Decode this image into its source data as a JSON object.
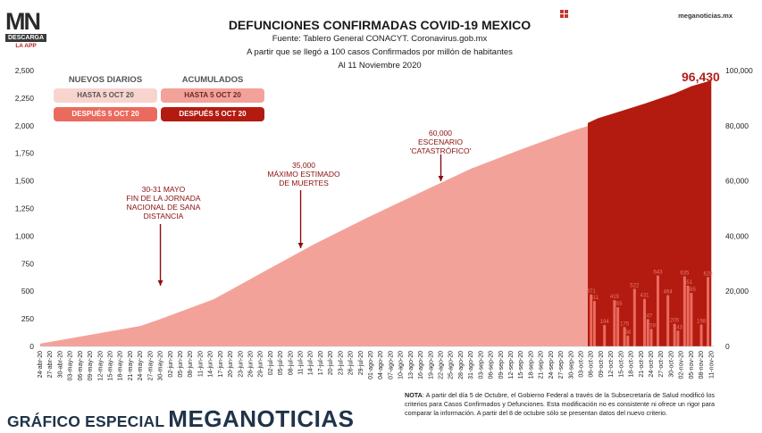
{
  "logo": {
    "mark": "MN",
    "line1": "DESCARGA",
    "line2": "LA APP"
  },
  "header": {
    "title": "DEFUNCIONES CONFIRMADAS COVID-19 MEXICO",
    "source": "Fuente: Tablero General CONACYT. Coronavirus.gob.mx",
    "subtitle": "A partir que se llegó a 100 casos Confirmados por millón de habitantes",
    "date": "Al 11 Noviembre 2020",
    "site": "meganoticias.mx"
  },
  "legend": {
    "daily_header": "NUEVOS DIARIOS",
    "cum_header": "ACUMULADOS",
    "daily_before": "HASTA 5 OCT 20",
    "daily_after": "DESPUÉS 5 OCT 20",
    "cum_before": "HASTA 5 OCT 20",
    "cum_after": "DESPUÉS 5 OCT 20"
  },
  "annotations": [
    {
      "lines": [
        "30-31 MAYO",
        "FIN DE LA JORNADA",
        "NACIONAL DE SANA",
        "DISTANCIA"
      ]
    },
    {
      "lines": [
        "35,000",
        "MÁXIMO ESTIMADO",
        "DE MUERTES"
      ]
    },
    {
      "lines": [
        "60,000",
        "ESCENARIO",
        "'CATASTRÓFICO'"
      ]
    }
  ],
  "note": {
    "label": "NOTA",
    "text": ": A partir del día 5 de Octubre, el Gobierno Federal a través de la Subsecretaría de Salud modificó los criterios para Casos Confirmados y Defunciones. Esta modificación no es consistente ni ofrece un rigor para comparar la información. A partir del 8 de octubre sólo se presentan datos del nuevo criterio."
  },
  "footer": {
    "lead": "GRÁFICO ESPECIAL",
    "brand": "MEGANOTICIAS"
  },
  "colors": {
    "daily_before": "#f8d4cf",
    "daily_after": "#ea6a5e",
    "cum_before": "#f3a29a",
    "cum_after": "#b31b10",
    "annotation": "#8b0e0e",
    "brand": "#1f3349"
  },
  "chart_data": {
    "type": "bar",
    "title": "DEFUNCIONES CONFIRMADAS COVID-19 MEXICO",
    "y_left": {
      "ylim": [
        0,
        2500
      ],
      "ticks": [
        "0",
        "250",
        "500",
        "750",
        "1,000",
        "1,250",
        "1,500",
        "1,750",
        "2,000",
        "2,250",
        "2,500"
      ]
    },
    "y_right": {
      "ylim": [
        0,
        100000
      ],
      "ticks": [
        "0",
        "20,000",
        "40,000",
        "60,000",
        "80,000",
        "100,000"
      ]
    },
    "x_ticks": [
      "24-abr-20",
      "27-abr-20",
      "30-abr-20",
      "03-may-20",
      "06-may-20",
      "09-may-20",
      "12-may-20",
      "15-may-20",
      "18-may-20",
      "21-may-20",
      "24-may-20",
      "27-may-20",
      "30-may-20",
      "02-jun-20",
      "05-jun-20",
      "08-jun-20",
      "11-jun-20",
      "14-jun-20",
      "17-jun-20",
      "20-jun-20",
      "23-jun-20",
      "26-jun-20",
      "29-jun-20",
      "02-jul-20",
      "05-jul-20",
      "08-jul-20",
      "11-jul-20",
      "14-jul-20",
      "17-jul-20",
      "20-jul-20",
      "23-jul-20",
      "26-jul-20",
      "29-jul-20",
      "01-ago-20",
      "04-ago-20",
      "07-ago-20",
      "10-ago-20",
      "13-ago-20",
      "16-ago-20",
      "19-ago-20",
      "22-ago-20",
      "25-ago-20",
      "28-ago-20",
      "31-ago-20",
      "03-sep-20",
      "06-sep-20",
      "09-sep-20",
      "12-sep-20",
      "15-sep-20",
      "18-sep-20",
      "21-sep-20",
      "24-sep-20",
      "27-sep-20",
      "30-sep-20",
      "03-oct-20",
      "06-oct-20",
      "09-oct-20",
      "12-oct-20",
      "15-oct-20",
      "18-oct-20",
      "21-oct-20",
      "24-oct-20",
      "27-oct-20",
      "30-oct-20",
      "02-nov-20",
      "05-nov-20",
      "08-nov-20",
      "11-nov-20"
    ],
    "start_date": "24-abr-20",
    "cumulative_last": "96,430",
    "cumulative_before_oct": [
      {
        "date": "24-abr-20",
        "value": 1000
      },
      {
        "date": "24-may-20",
        "value": 7400
      },
      {
        "date": "30-may-20",
        "value": 9900
      },
      {
        "date": "15-jun-20",
        "value": 17100
      },
      {
        "date": "30-jun-20",
        "value": 27100
      },
      {
        "date": "15-jul-20",
        "value": 37000
      },
      {
        "date": "31-jul-20",
        "value": 46700
      },
      {
        "date": "15-ago-20",
        "value": 55300
      },
      {
        "date": "31-ago-20",
        "value": 64400
      },
      {
        "date": "15-sep-20",
        "value": 71400
      },
      {
        "date": "30-sep-20",
        "value": 78000
      },
      {
        "date": "05-oct-20",
        "value": 79900
      }
    ],
    "cumulative_after_oct": [
      {
        "date": "05-oct-20",
        "value": 81000
      },
      {
        "date": "08-oct-20",
        "value": 82700
      },
      {
        "date": "15-oct-20",
        "value": 85300
      },
      {
        "date": "22-oct-20",
        "value": 88000
      },
      {
        "date": "31-oct-20",
        "value": 91700
      },
      {
        "date": "05-nov-20",
        "value": 94300
      },
      {
        "date": "11-nov-20",
        "value": 96430
      }
    ],
    "daily_labels_after": [
      {
        "date": "06-oct-20",
        "value": 471
      },
      {
        "date": "07-oct-20",
        "value": 411
      },
      {
        "date": "10-oct-20",
        "value": 194
      },
      {
        "date": "13-oct-20",
        "value": 419
      },
      {
        "date": "14-oct-20",
        "value": 355
      },
      {
        "date": "16-oct-20",
        "value": 175
      },
      {
        "date": "17-oct-20",
        "value": 98
      },
      {
        "date": "19-oct-20",
        "value": 522
      },
      {
        "date": "22-oct-20",
        "value": 431
      },
      {
        "date": "23-oct-20",
        "value": 247
      },
      {
        "date": "24-oct-20",
        "value": 159
      },
      {
        "date": "26-oct-20",
        "value": 643
      },
      {
        "date": "29-oct-20",
        "value": 464
      },
      {
        "date": "31-oct-20",
        "value": 205
      },
      {
        "date": "01-nov-20",
        "value": 143
      },
      {
        "date": "03-nov-20",
        "value": 635
      },
      {
        "date": "04-nov-20",
        "value": 551
      },
      {
        "date": "05-nov-20",
        "value": 485
      },
      {
        "date": "08-nov-20",
        "value": 198
      },
      {
        "date": "10-nov-20",
        "value": 628
      }
    ]
  }
}
